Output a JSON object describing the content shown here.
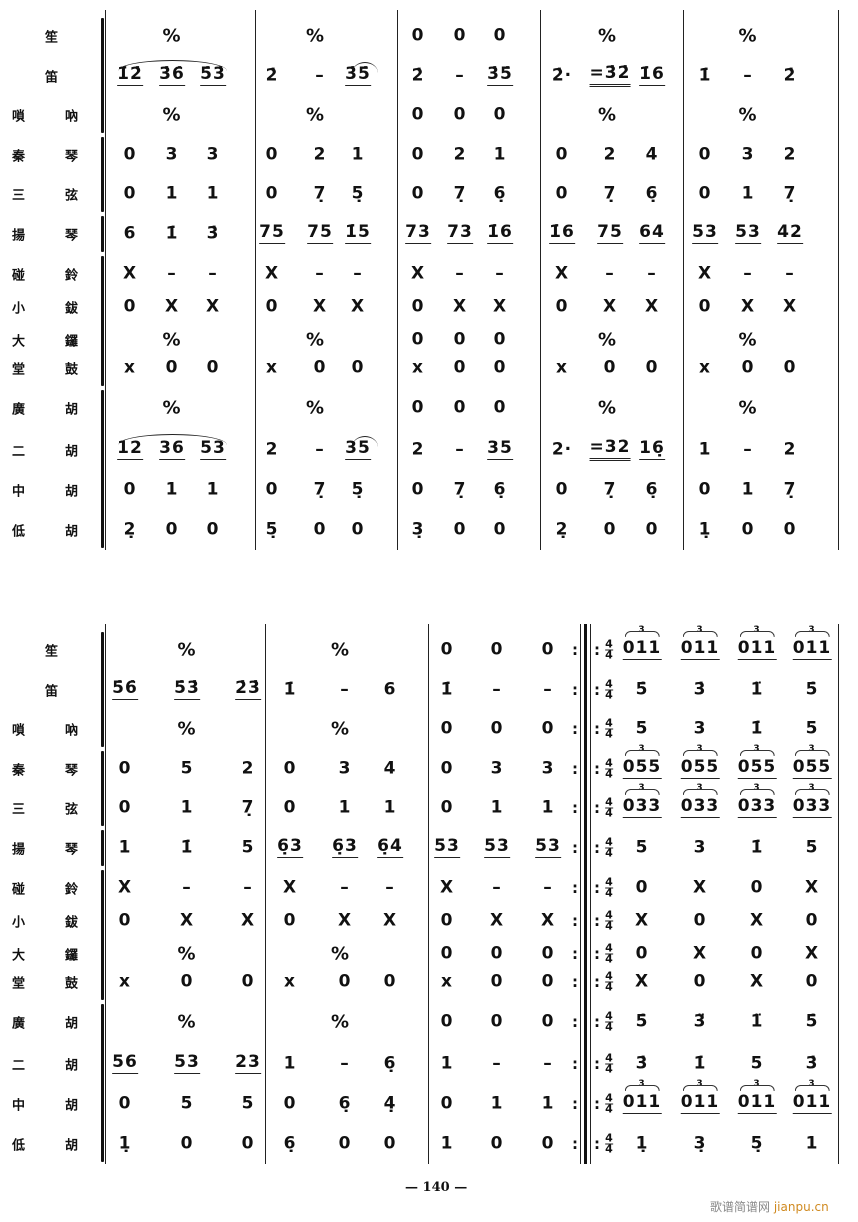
{
  "instruments": [
    {
      "label": "笙"
    },
    {
      "label": "笛"
    },
    {
      "label": "嗩吶"
    },
    {
      "label": "秦琴"
    },
    {
      "label": "三弦"
    },
    {
      "label": "揚琴"
    },
    {
      "label": "碰鈴"
    },
    {
      "label": "小鈸"
    },
    {
      "label": "大鑼"
    },
    {
      "label": "堂鼓"
    },
    {
      "label": "廣胡"
    },
    {
      "label": "二胡"
    },
    {
      "label": "中胡"
    },
    {
      "label": "低胡"
    }
  ],
  "time_signature": {
    "numerator": "4",
    "denominator": "4"
  },
  "repeat_colon": ":",
  "systems": [
    {
      "rows": [
        [
          [
            "%"
          ],
          [
            "%"
          ],
          [
            "0",
            "0",
            "0"
          ],
          [
            "%"
          ],
          [
            "%"
          ]
        ],
        [
          [
            "1̇2̇",
            "3̇6̇",
            "5̇3̇"
          ],
          [
            "2̇",
            "–",
            "3̇5̇"
          ],
          [
            "2̇",
            "–",
            "3̇5̇"
          ],
          [
            "2̇·",
            "=3̇2̇",
            "1̇6"
          ],
          [
            "1̇",
            "–",
            "2̇"
          ]
        ],
        [
          [
            "%"
          ],
          [
            "%"
          ],
          [
            "0",
            "0",
            "0"
          ],
          [
            "%"
          ],
          [
            "%"
          ]
        ],
        [
          [
            "0",
            "3",
            "3"
          ],
          [
            "0",
            "2",
            "1"
          ],
          [
            "0",
            "2",
            "1"
          ],
          [
            "0",
            "2",
            "4"
          ],
          [
            "0",
            "3",
            "2"
          ]
        ],
        [
          [
            "0",
            "1",
            "1"
          ],
          [
            "0",
            "7̣",
            "5̣"
          ],
          [
            "0",
            "7̣",
            "6̣"
          ],
          [
            "0",
            "7̣",
            "6̣"
          ],
          [
            "0",
            "1",
            "7̣"
          ]
        ],
        [
          [
            "6",
            "1̇",
            "3̇"
          ],
          [
            "75",
            "75",
            "1̇5"
          ],
          [
            "73",
            "73",
            "1̇6"
          ],
          [
            "1̇6",
            "75",
            "64"
          ],
          [
            "53",
            "53",
            "42"
          ]
        ],
        [
          [
            "X",
            "–",
            "–"
          ],
          [
            "X",
            "–",
            "–"
          ],
          [
            "X",
            "–",
            "–"
          ],
          [
            "X",
            "–",
            "–"
          ],
          [
            "X",
            "–",
            "–"
          ]
        ],
        [
          [
            "0",
            "X",
            "X"
          ],
          [
            "0",
            "X",
            "X"
          ],
          [
            "0",
            "X",
            "X"
          ],
          [
            "0",
            "X",
            "X"
          ],
          [
            "0",
            "X",
            "X"
          ]
        ],
        [
          [
            "%"
          ],
          [
            "%"
          ],
          [
            "0",
            "0",
            "0"
          ],
          [
            "%"
          ],
          [
            "%"
          ]
        ],
        [
          [
            "x",
            "0",
            "0"
          ],
          [
            "x",
            "0",
            "0"
          ],
          [
            "x",
            "0",
            "0"
          ],
          [
            "x",
            "0",
            "0"
          ],
          [
            "x",
            "0",
            "0"
          ]
        ],
        [
          [
            "%"
          ],
          [
            "%"
          ],
          [
            "0",
            "0",
            "0"
          ],
          [
            "%"
          ],
          [
            "%"
          ]
        ],
        [
          [
            "12",
            "36",
            "53"
          ],
          [
            "2",
            "–",
            "35"
          ],
          [
            "2",
            "–",
            "35"
          ],
          [
            "2·",
            "=32",
            "16̣"
          ],
          [
            "1",
            "–",
            "2"
          ]
        ],
        [
          [
            "0",
            "1",
            "1"
          ],
          [
            "0",
            "7̣",
            "5̣"
          ],
          [
            "0",
            "7̣",
            "6̣"
          ],
          [
            "0",
            "7̣",
            "6̣"
          ],
          [
            "0",
            "1",
            "7̣"
          ]
        ],
        [
          [
            "2̣",
            "0",
            "0"
          ],
          [
            "5̣",
            "0",
            "0"
          ],
          [
            "3̣",
            "0",
            "0"
          ],
          [
            "2̣",
            "0",
            "0"
          ],
          [
            "1̣",
            "0",
            "0"
          ]
        ]
      ]
    },
    {
      "rows": [
        [
          [
            "%"
          ],
          [
            "%"
          ],
          [
            "0",
            "0",
            "0"
          ],
          [
            "t011",
            "t011",
            "t011",
            "t011"
          ]
        ],
        [
          [
            "5̇6̇",
            "5̇3̇",
            "2̇3̇"
          ],
          [
            "1̇",
            "–",
            "6"
          ],
          [
            "1̇",
            "–",
            "–"
          ],
          [
            "5̇",
            "3̇",
            "1̈",
            "5̇"
          ]
        ],
        [
          [
            "%"
          ],
          [
            "%"
          ],
          [
            "0",
            "0",
            "0"
          ],
          [
            "5",
            "3",
            "1̇",
            "5"
          ]
        ],
        [
          [
            "0",
            "5",
            "2"
          ],
          [
            "0",
            "3",
            "4"
          ],
          [
            "0",
            "3",
            "3"
          ],
          [
            "t055",
            "t055",
            "t055",
            "t055"
          ]
        ],
        [
          [
            "0",
            "1",
            "7̣"
          ],
          [
            "0",
            "1",
            "1"
          ],
          [
            "0",
            "1",
            "1"
          ],
          [
            "t033",
            "t033",
            "t033",
            "t033"
          ]
        ],
        [
          [
            "1",
            "1̇",
            "5"
          ],
          [
            "6̣3",
            "6̣3",
            "6̣4"
          ],
          [
            "53",
            "53",
            "53"
          ],
          [
            "5",
            "3",
            "1̇",
            "5"
          ]
        ],
        [
          [
            "X",
            "–",
            "–"
          ],
          [
            "X",
            "–",
            "–"
          ],
          [
            "X",
            "–",
            "–"
          ],
          [
            "0",
            "X",
            "0",
            "X"
          ]
        ],
        [
          [
            "0",
            "X",
            "X"
          ],
          [
            "0",
            "X",
            "X"
          ],
          [
            "0",
            "X",
            "X"
          ],
          [
            "X",
            "0",
            "X",
            "0"
          ]
        ],
        [
          [
            "%"
          ],
          [
            "%"
          ],
          [
            "0",
            "0",
            "0"
          ],
          [
            "0",
            "X",
            "0",
            "X"
          ]
        ],
        [
          [
            "x",
            "0",
            "0"
          ],
          [
            "x",
            "0",
            "0"
          ],
          [
            "x",
            "0",
            "0"
          ],
          [
            "X",
            "0",
            "X",
            "0"
          ]
        ],
        [
          [
            "%"
          ],
          [
            "%"
          ],
          [
            "0",
            "0",
            "0"
          ],
          [
            "5̇",
            "3̈",
            "1̈",
            "5̇"
          ]
        ],
        [
          [
            "56",
            "53",
            "23"
          ],
          [
            "1",
            "–",
            "6̣"
          ],
          [
            "1",
            "–",
            "–"
          ],
          [
            "3̇",
            "1̇",
            "5",
            "3̇"
          ]
        ],
        [
          [
            "0",
            "5",
            "5"
          ],
          [
            "0",
            "6̣",
            "4̣"
          ],
          [
            "0",
            "1",
            "1"
          ],
          [
            "t011",
            "t011",
            "t011",
            "t011"
          ]
        ],
        [
          [
            "1̣",
            "0",
            "0"
          ],
          [
            "6̣",
            "0",
            "0"
          ],
          [
            "1",
            "0",
            "0"
          ],
          [
            "1̣",
            "3̣",
            "5̣",
            "1"
          ]
        ]
      ]
    }
  ],
  "footer": {
    "page_number": "— 140 —"
  },
  "watermark": {
    "site_cn": "歌谱简谱网",
    "site_en": "jianpu.cn"
  }
}
